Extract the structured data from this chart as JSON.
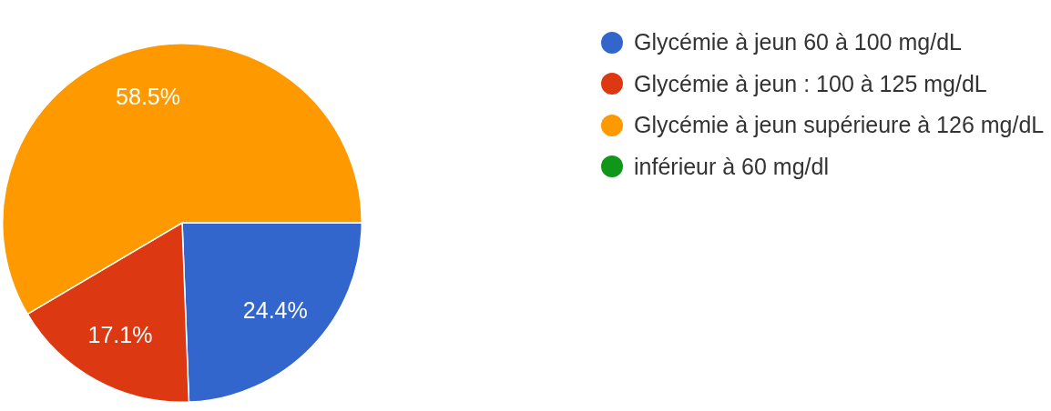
{
  "chart_data": {
    "type": "pie",
    "categories": [
      "Glycémie à jeun 60 à 100 mg/dL",
      "Glycémie à jeun : 100 à 125 mg/dL",
      "Glycémie à jeun supérieure à 126 mg/dL",
      "inférieur à 60 mg/dl"
    ],
    "values": [
      24.4,
      17.1,
      58.5,
      0
    ],
    "colors": [
      "#3366cc",
      "#dc3912",
      "#ff9900",
      "#109618"
    ],
    "value_labels": [
      "24.4%",
      "17.1%",
      "58.5%",
      null
    ],
    "legend": "top right"
  }
}
